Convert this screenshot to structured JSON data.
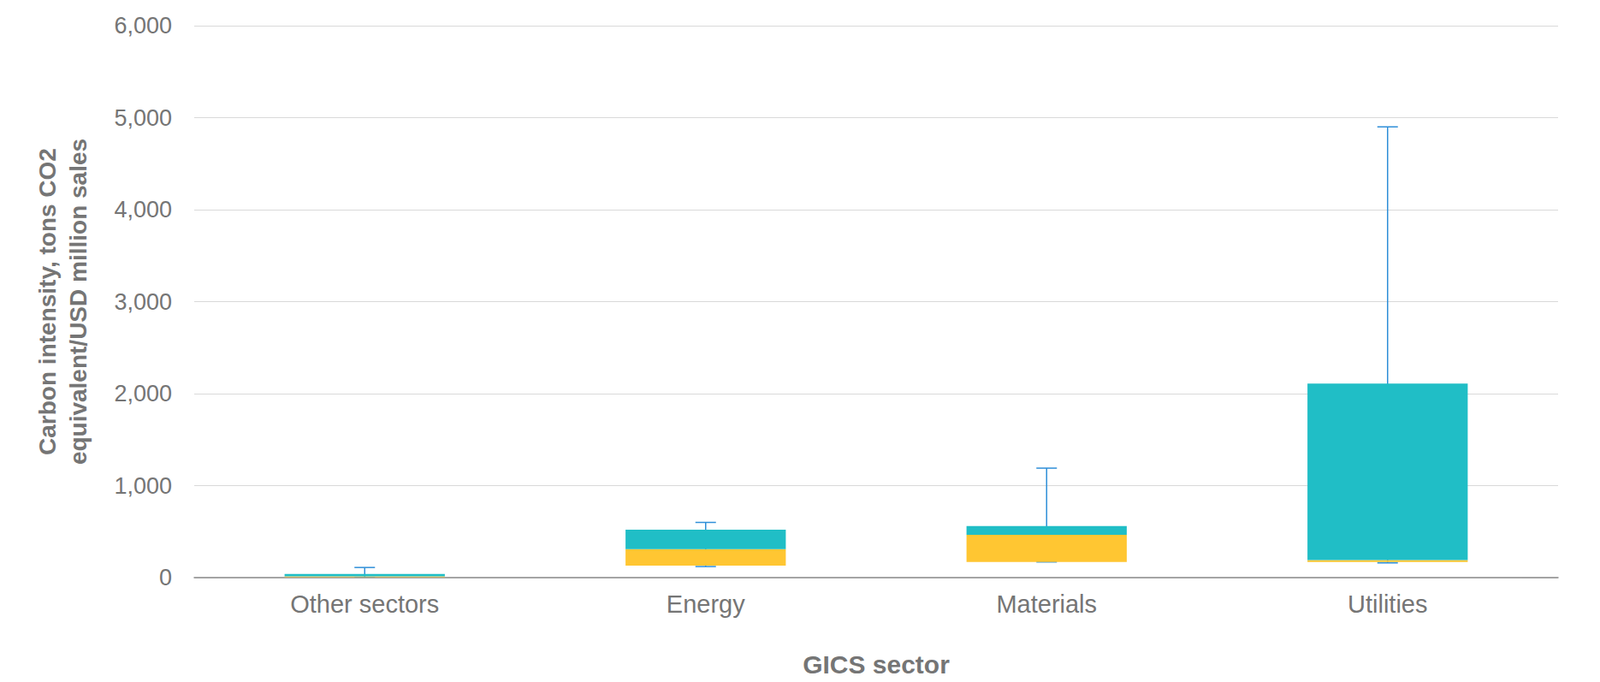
{
  "chart_data": {
    "type": "boxplot",
    "x_label": "GICS sector",
    "y_label": "Carbon intensity, tons CO2\nequivalent/USD million sales",
    "categories": [
      "Other sectors",
      "Energy",
      "Materials",
      "Utilities"
    ],
    "min": [
      0,
      120,
      170,
      160
    ],
    "q1": [
      5,
      130,
      170,
      170
    ],
    "median": [
      15,
      310,
      465,
      190
    ],
    "q3": [
      40,
      520,
      560,
      2110
    ],
    "max": [
      110,
      600,
      1190,
      4900
    ],
    "box_colors": [
      "#ffc632",
      "#20bec6"
    ],
    "color": "#2f8fd8",
    "ylim": [
      0,
      6000
    ],
    "yticks": [
      0,
      1000,
      2000,
      3000,
      4000,
      5000,
      6000
    ],
    "grid": true
  }
}
